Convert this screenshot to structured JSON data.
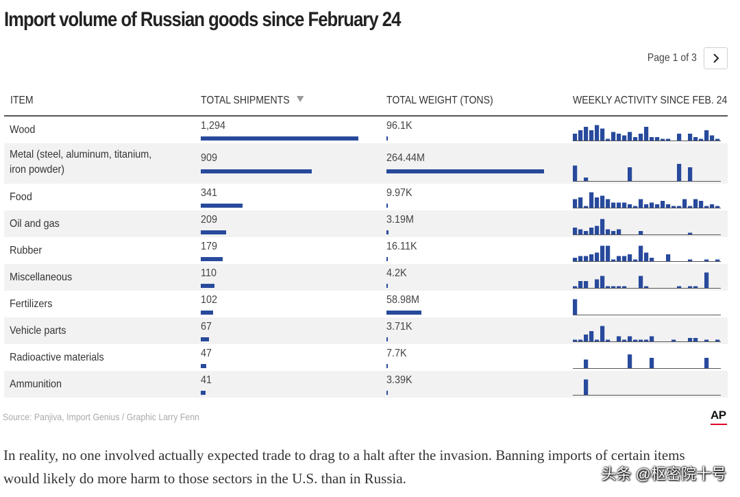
{
  "title": "Import volume of Russian goods since February 24",
  "pager": {
    "text": "Page 1 of 3",
    "next_icon": "chevron-right-icon"
  },
  "columns": {
    "item": "ITEM",
    "shipments": "TOTAL SHIPMENTS",
    "weight": "TOTAL WEIGHT (TONS)",
    "activity": "WEEKLY ACTIVITY SINCE FEB. 24"
  },
  "chart_data": {
    "type": "table",
    "title": "Import volume of Russian goods since February 24",
    "sort": "TOTAL SHIPMENTS descending",
    "bar_color": "#284a9c",
    "rows": [
      {
        "item": "Wood",
        "shipments": 1294,
        "shipments_label": "1,294",
        "weight_tons": 96100,
        "weight_label": "96.1K",
        "weekly": [
          4,
          6,
          8,
          6,
          9,
          7,
          1,
          5,
          4,
          3,
          5,
          2,
          4,
          8,
          2,
          2,
          1,
          1,
          0,
          4,
          0,
          4,
          2,
          1,
          6,
          3,
          1
        ]
      },
      {
        "item": "Metal (steel, aluminum, titanium, iron powder)",
        "shipments": 909,
        "shipments_label": "909",
        "weight_tons": 264440000,
        "weight_label": "264.44M",
        "weekly": [
          9,
          0,
          2,
          0,
          0,
          0,
          0,
          0,
          0,
          0,
          8,
          0,
          0,
          0,
          0,
          0,
          0,
          0,
          0,
          10,
          0,
          8,
          0,
          0,
          0,
          0,
          0
        ]
      },
      {
        "item": "Food",
        "shipments": 341,
        "shipments_label": "341",
        "weight_tons": 9970,
        "weight_label": "9.97K",
        "weekly": [
          5,
          6,
          1,
          9,
          6,
          7,
          5,
          3,
          3,
          3,
          2,
          1,
          5,
          2,
          3,
          2,
          4,
          2,
          1,
          1,
          5,
          1,
          5,
          4,
          1,
          2,
          1
        ]
      },
      {
        "item": "Oil and gas",
        "shipments": 209,
        "shipments_label": "209",
        "weight_tons": 3190000,
        "weight_label": "3.19M",
        "weekly": [
          4,
          3,
          2,
          4,
          5,
          9,
          3,
          2,
          3,
          0,
          0,
          0,
          2,
          0,
          0,
          0,
          0,
          0,
          0,
          0,
          0,
          1,
          0,
          0,
          0,
          0,
          0
        ]
      },
      {
        "item": "Rubber",
        "shipments": 179,
        "shipments_label": "179",
        "weight_tons": 16110,
        "weight_label": "16.11K",
        "weekly": [
          2,
          3,
          3,
          4,
          5,
          9,
          9,
          1,
          3,
          3,
          4,
          1,
          9,
          5,
          2,
          0,
          0,
          4,
          0,
          0,
          0,
          1,
          0,
          0,
          1,
          0,
          1
        ]
      },
      {
        "item": "Miscellaneous",
        "shipments": 110,
        "shipments_label": "110",
        "weight_tons": 4200,
        "weight_label": "4.2K",
        "weekly": [
          1,
          4,
          4,
          0,
          5,
          7,
          1,
          1,
          1,
          1,
          0,
          0,
          7,
          1,
          0,
          0,
          0,
          0,
          0,
          1,
          0,
          1,
          1,
          0,
          9,
          0,
          0
        ]
      },
      {
        "item": "Fertilizers",
        "shipments": 102,
        "shipments_label": "102",
        "weight_tons": 58980000,
        "weight_label": "58.98M",
        "weekly": [
          9,
          0,
          0,
          0,
          0,
          0,
          0,
          0,
          0,
          0,
          0,
          0,
          0,
          0,
          0,
          0,
          0,
          0,
          0,
          0,
          0,
          0,
          0,
          0,
          0,
          0,
          0
        ]
      },
      {
        "item": "Vehicle parts",
        "shipments": 67,
        "shipments_label": "67",
        "weight_tons": 3710,
        "weight_label": "3.71K",
        "weekly": [
          1,
          1,
          4,
          6,
          1,
          9,
          1,
          0,
          3,
          1,
          3,
          1,
          1,
          1,
          3,
          0,
          0,
          0,
          1,
          0,
          0,
          2,
          2,
          0,
          1,
          0,
          1
        ]
      },
      {
        "item": "Radioactive materials",
        "shipments": 47,
        "shipments_label": "47",
        "weight_tons": 7700,
        "weight_label": "7.7K",
        "weekly": [
          0,
          0,
          5,
          0,
          0,
          0,
          0,
          0,
          0,
          0,
          8,
          0,
          0,
          0,
          6,
          0,
          0,
          0,
          0,
          0,
          0,
          0,
          0,
          0,
          6,
          0,
          0
        ]
      },
      {
        "item": "Ammunition",
        "shipments": 41,
        "shipments_label": "41",
        "weight_tons": 3390,
        "weight_label": "3.39K",
        "weekly": [
          0,
          0,
          9,
          0,
          0,
          0,
          0,
          0,
          0,
          0,
          0,
          0,
          0,
          0,
          0,
          0,
          0,
          0,
          0,
          0,
          0,
          0,
          0,
          0,
          0,
          0,
          0
        ]
      }
    ]
  },
  "source": "Source: Panjiva, Import Genius / Graphic Larry Fenn",
  "brand": {
    "logo": "AP",
    "accent": "#e0002a"
  },
  "body_text": "In reality, no one involved actually expected trade to drag to a halt after the invasion. Banning imports of certain items would likely do more harm to those sectors in the U.S. than in Russia.",
  "watermark": "头条 @枢密院十号"
}
